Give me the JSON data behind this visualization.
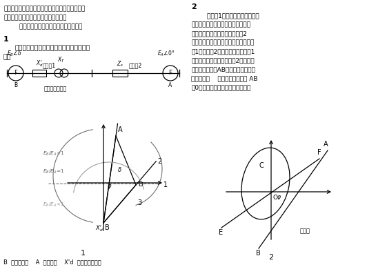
{
  "bg_color": "#ffffff",
  "text_color": "#000000",
  "gray_color": "#666666",
  "light_gray": "#999999",
  "caption1": "1",
  "caption2": "2",
  "section1": "1",
  "section2": "2",
  "zone1": "动作区1",
  "zone2": "动作区2",
  "install_label": "失步保护安装处",
  "bottom_label": "B  代表发电机    A  代表系统    X'd  代表发电机阻抗",
  "top_line1": "厂站侧的厂用系统，危及机组安全运行。对大型机",
  "top_line2": "组应该配置功能比较齐全的失步保护。",
  "top_line3": "        这里介绍一种三阻抗元件的失步保护。",
  "sec1_line1": "发电机与系统发生失步的振荡中心轨迹图如",
  "sec1_line2": "下：",
  "right_line1": "        根据图1的阻抗运行轨迹，可以",
  "right_line2": "抗元件和两根直线型阻抗元件构成三",
  "right_line3": "发电机的失步。阻抗元件图如图2",
  "right_line4": "件，把阻抗平面分为两个动作区，即动",
  "right_line5": "区1、动作区2。当振荡中心落于区1",
  "right_line6": "位于变变组内部，当落于区2时，振荡",
  "right_line7": "变以外的系统。AB为阻挡元件，把阻",
  "right_line8": "右两部分。    为阻抗角，失步线 AB",
  "right_line9": "点0代表失步保护安装处，即机端。",
  "dyn_zone": "动作区"
}
